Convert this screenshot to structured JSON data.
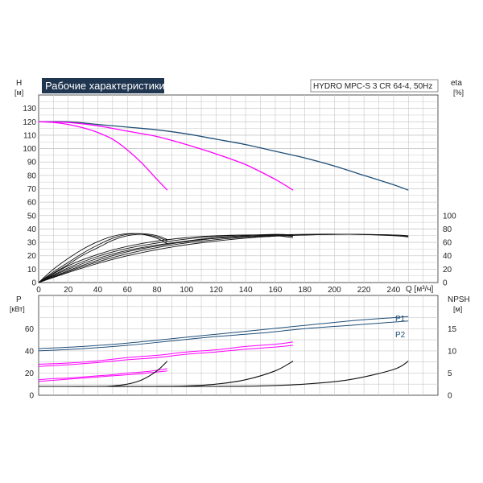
{
  "chart_data": {
    "type": "line",
    "title": "Рабочие характеристики",
    "model": "HYDRO MPC-S 3 CR 64-4, 50Hz",
    "colors": {
      "max_curve": "#1f4f78",
      "reduced_curve": "#ff00ff",
      "black_curve": "#111111",
      "grid": "#c8c8c8",
      "title_bg": "#1f3550"
    },
    "top_plot": {
      "y_left_label": "H",
      "y_left_unit": "[м]",
      "y_right_label": "eta",
      "y_right_unit": "[%]",
      "x_label": "Q [м³/ч]",
      "x_ticks": [
        "0",
        "20",
        "40",
        "60",
        "80",
        "100",
        "120",
        "140",
        "160",
        "180",
        "200",
        "220",
        "240"
      ],
      "y_left_ticks": [
        "0",
        "10",
        "20",
        "30",
        "40",
        "50",
        "60",
        "70",
        "80",
        "90",
        "100",
        "110",
        "120",
        "130"
      ],
      "y_right_ticks": [
        "0",
        "20",
        "40",
        "60",
        "80",
        "100"
      ],
      "xlim": [
        0,
        270
      ],
      "ylim": [
        0,
        140
      ],
      "eta_scale": "0–100 % corresponds to 0–50 m",
      "head_curves": [
        {
          "pumps": 3,
          "color": "blue",
          "x": [
            0,
            20,
            40,
            60,
            80,
            100,
            120,
            140,
            160,
            180,
            200,
            220,
            240,
            250
          ],
          "y": [
            120,
            120,
            118,
            116,
            114,
            111,
            107,
            103,
            98,
            93,
            87,
            80,
            73,
            69
          ]
        },
        {
          "pumps": 2,
          "color": "magenta",
          "x": [
            0,
            20,
            40,
            60,
            80,
            100,
            120,
            140,
            160,
            172
          ],
          "y": [
            120,
            119.5,
            117,
            113,
            109,
            103,
            96,
            88,
            77,
            69
          ]
        },
        {
          "pumps": 1,
          "color": "magenta",
          "x": [
            0,
            10,
            20,
            30,
            40,
            50,
            60,
            70,
            80,
            87
          ],
          "y": [
            120,
            119.5,
            118,
            115.5,
            112,
            107,
            99,
            89,
            77,
            69
          ]
        }
      ],
      "eta_curves": [
        {
          "pumps": 1,
          "x": [
            0,
            10,
            20,
            30,
            40,
            50,
            60,
            70,
            80,
            87
          ],
          "y": [
            0,
            14,
            27,
            41,
            52,
            63,
            70,
            72,
            68,
            62
          ]
        },
        {
          "pumps": 1,
          "x": [
            0,
            10,
            20,
            30,
            40,
            50,
            60,
            70,
            80,
            87
          ],
          "y": [
            0,
            20,
            36,
            50,
            61,
            69,
            73,
            72,
            66,
            58
          ]
        },
        {
          "pumps": 1,
          "x": [
            0,
            10,
            20,
            30,
            40,
            50,
            60,
            70,
            80,
            87
          ],
          "y": [
            0,
            16,
            30,
            44,
            56,
            66,
            72,
            73,
            70,
            64
          ]
        },
        {
          "pumps": 2,
          "x": [
            0,
            20,
            40,
            60,
            80,
            100,
            120,
            140,
            160,
            172
          ],
          "y": [
            0,
            20,
            36,
            48,
            56,
            62,
            67,
            70,
            72,
            71
          ]
        },
        {
          "pumps": 2,
          "x": [
            0,
            20,
            40,
            60,
            80,
            100,
            120,
            140,
            160,
            172
          ],
          "y": [
            0,
            25,
            42,
            54,
            62,
            67,
            70,
            71,
            70,
            67
          ]
        },
        {
          "pumps": 2,
          "x": [
            0,
            20,
            40,
            60,
            80,
            100,
            120,
            140,
            160,
            172
          ],
          "y": [
            0,
            22,
            39,
            51,
            59,
            65,
            69,
            71,
            71,
            69
          ]
        },
        {
          "pumps": 3,
          "x": [
            0,
            30,
            60,
            90,
            120,
            150,
            180,
            210,
            240,
            250
          ],
          "y": [
            0,
            22,
            40,
            53,
            62,
            68,
            71,
            72,
            71,
            70
          ]
        },
        {
          "pumps": 3,
          "x": [
            0,
            30,
            60,
            90,
            120,
            150,
            180,
            210,
            240,
            250
          ],
          "y": [
            0,
            26,
            46,
            58,
            66,
            70,
            72,
            72,
            70,
            68
          ]
        },
        {
          "pumps": 3,
          "x": [
            0,
            30,
            60,
            90,
            120,
            150,
            180,
            210,
            240,
            250
          ],
          "y": [
            0,
            24,
            43,
            56,
            64,
            69,
            71,
            72,
            71,
            69
          ]
        }
      ]
    },
    "bottom_plot": {
      "y_left_label": "P",
      "y_left_unit": "[кВт]",
      "y_right_label": "NPSH",
      "y_right_unit": "[м]",
      "y_left_ticks": [
        "0",
        "20",
        "40",
        "60"
      ],
      "y_right_ticks": [
        "0",
        "5",
        "10",
        "15"
      ],
      "ylim": [
        0,
        90
      ],
      "npsh_scale": "0–15 m corresponds to 0–60 kW",
      "series_labels": [
        "P1",
        "P2"
      ],
      "power_curves": [
        {
          "pumps": 3,
          "name": "P1",
          "color": "blue",
          "x": [
            0,
            30,
            60,
            90,
            120,
            150,
            180,
            210,
            240,
            250
          ],
          "y": [
            42,
            44,
            47,
            51,
            55,
            59,
            63,
            67,
            70,
            71
          ]
        },
        {
          "pumps": 3,
          "name": "P2",
          "color": "blue",
          "x": [
            0,
            30,
            60,
            90,
            120,
            150,
            180,
            210,
            240,
            250
          ],
          "y": [
            40,
            42,
            45,
            49,
            53,
            56,
            60,
            63,
            66,
            67
          ]
        },
        {
          "pumps": 2,
          "color": "magenta",
          "x": [
            0,
            20,
            40,
            60,
            80,
            100,
            120,
            140,
            160,
            172
          ],
          "y": [
            28,
            29,
            31,
            34,
            36,
            39,
            41,
            44,
            46,
            48
          ]
        },
        {
          "pumps": 2,
          "color": "magenta",
          "x": [
            0,
            20,
            40,
            60,
            80,
            100,
            120,
            140,
            160,
            172
          ],
          "y": [
            26,
            27.5,
            29.5,
            32,
            34,
            37,
            39,
            41.5,
            43.5,
            45
          ]
        },
        {
          "pumps": 1,
          "color": "magenta",
          "x": [
            0,
            10,
            20,
            30,
            40,
            50,
            60,
            70,
            80,
            87
          ],
          "y": [
            14,
            15,
            15.5,
            16.5,
            17.5,
            18.5,
            20,
            21,
            22.5,
            24
          ]
        },
        {
          "pumps": 1,
          "color": "magenta",
          "x": [
            0,
            10,
            20,
            30,
            40,
            50,
            60,
            70,
            80,
            87
          ],
          "y": [
            12.5,
            13.5,
            14.5,
            15.5,
            16.5,
            17.5,
            18.5,
            19.5,
            21,
            22
          ]
        }
      ],
      "npsh_curves": [
        {
          "pumps": 1,
          "x": [
            0,
            20,
            40,
            50,
            60,
            70,
            80,
            87
          ],
          "y": [
            2,
            2,
            2,
            2.1,
            2.5,
            3.5,
            5.5,
            7.7
          ]
        },
        {
          "pumps": 2,
          "x": [
            0,
            40,
            80,
            100,
            120,
            140,
            160,
            172
          ],
          "y": [
            2,
            2,
            2,
            2.1,
            2.5,
            3.5,
            5.5,
            7.7
          ]
        },
        {
          "pumps": 3,
          "x": [
            0,
            60,
            120,
            150,
            180,
            210,
            240,
            250
          ],
          "y": [
            2,
            2,
            2,
            2.1,
            2.5,
            3.5,
            5.8,
            7.7
          ]
        }
      ]
    }
  }
}
